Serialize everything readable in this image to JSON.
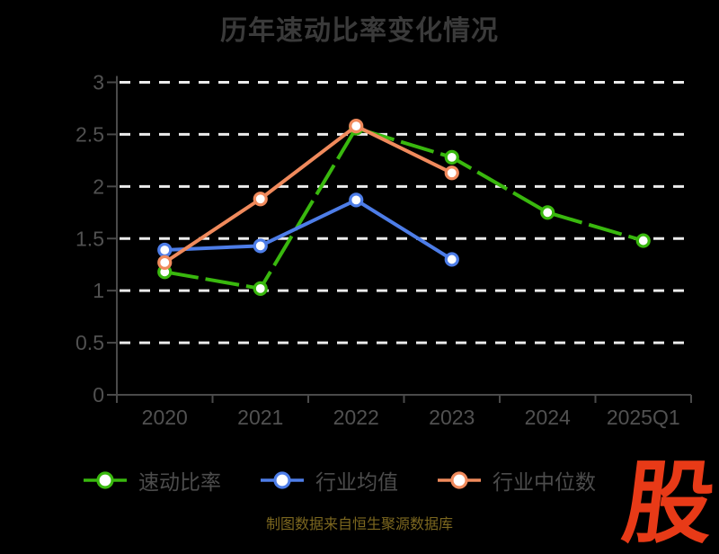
{
  "title": "历年速动比率变化情况",
  "source_note": "制图数据来自恒生聚源数据库",
  "logo_text": "股",
  "colors": {
    "background": "#000000",
    "title_text": "#3a3a3a",
    "axis_line": "#4a4a4a",
    "axis_label": "#515151",
    "grid_line": "#ebebeb",
    "legend_text": "#4c4c4c",
    "source_text": "#7c671f",
    "logo_red": "#e83a17",
    "marker_fill": "#ffffff"
  },
  "chart_data": {
    "type": "line",
    "title": "历年速动比率变化情况",
    "categories": [
      "2020",
      "2021",
      "2022",
      "2023",
      "2024",
      "2025Q1"
    ],
    "series": [
      {
        "name": "速动比率",
        "color": "#39b80e",
        "line_style": "dashed",
        "values": [
          1.18,
          1.02,
          2.56,
          2.28,
          1.75,
          1.48
        ]
      },
      {
        "name": "行业均值",
        "color": "#4d7de8",
        "line_style": "solid",
        "values": [
          1.39,
          1.43,
          1.87,
          1.3,
          null,
          null
        ]
      },
      {
        "name": "行业中位数",
        "color": "#f08a5c",
        "line_style": "solid",
        "values": [
          1.27,
          1.88,
          2.58,
          2.13,
          null,
          null
        ]
      }
    ],
    "xlabel": "",
    "ylabel": "",
    "ylim": [
      0,
      3
    ],
    "yticks": [
      0,
      0.5,
      1,
      1.5,
      2,
      2.5,
      3
    ],
    "grid": "horizontal-dashed-white",
    "legend_position": "bottom",
    "marker": "white-filled-circle-colored-ring"
  }
}
